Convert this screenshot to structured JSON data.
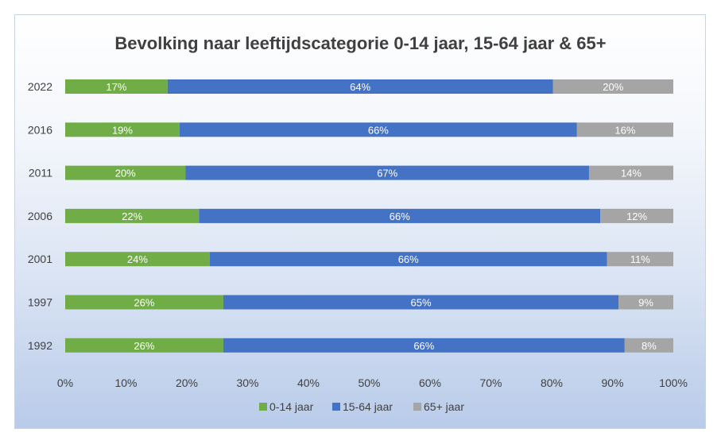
{
  "chart_data": {
    "type": "bar",
    "orientation": "horizontal",
    "stacked": "percent",
    "title": "Bevolking naar leeftijdscategorie 0-14 jaar, 15-64 jaar & 65+",
    "categories": [
      "2022",
      "2016",
      "2011",
      "2006",
      "2001",
      "1997",
      "1992"
    ],
    "series": [
      {
        "name": "0-14 jaar",
        "color": "#70ad47",
        "values": [
          17,
          19,
          20,
          22,
          24,
          26,
          26
        ],
        "labels": [
          "17%",
          "19%",
          "20%",
          "22%",
          "24%",
          "26%",
          "26%"
        ]
      },
      {
        "name": "15-64 jaar",
        "color": "#4472c4",
        "values": [
          64,
          66,
          67,
          66,
          66,
          65,
          66
        ],
        "labels": [
          "64%",
          "66%",
          "67%",
          "66%",
          "66%",
          "65%",
          "66%"
        ]
      },
      {
        "name": "65+ jaar",
        "color": "#a5a5a5",
        "values": [
          20,
          16,
          14,
          12,
          11,
          9,
          8
        ],
        "labels": [
          "20%",
          "16%",
          "14%",
          "12%",
          "11%",
          "9%",
          "8%"
        ]
      }
    ],
    "xticks": [
      "0%",
      "10%",
      "20%",
      "30%",
      "40%",
      "50%",
      "60%",
      "70%",
      "80%",
      "90%",
      "100%"
    ],
    "xlim": [
      0,
      100
    ],
    "grid": false,
    "legend": "bottom"
  }
}
